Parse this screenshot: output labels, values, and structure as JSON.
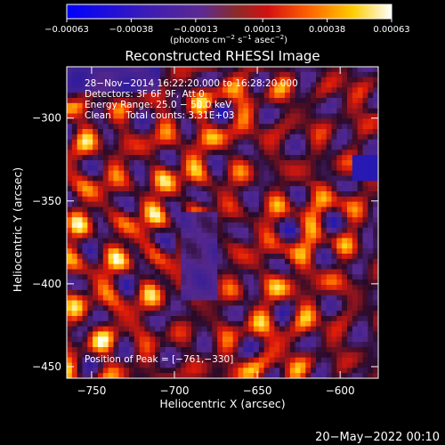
{
  "chart_data": {
    "type": "heatmap",
    "title": "Reconstructed RHESSI Image",
    "xlabel": "Heliocentric X (arcsec)",
    "ylabel": "Heliocentric Y (arcsec)",
    "xlim": [
      -765,
      -577
    ],
    "ylim": [
      -457,
      -269
    ],
    "xticks": [
      -750,
      -700,
      -650,
      -600
    ],
    "yticks": [
      -300,
      -350,
      -400,
      -450
    ],
    "xtick_labels": [
      "−750",
      "−700",
      "−650",
      "−600"
    ],
    "ytick_labels": [
      "−300",
      "−350",
      "−400",
      "−450"
    ],
    "colorbar": {
      "range": [
        -0.00063,
        0.00063
      ],
      "ticks": [
        -0.00063,
        -0.00038,
        -0.00013,
        0.00013,
        0.00038,
        0.00063
      ],
      "tick_labels": [
        "−0.00063",
        "−0.00038",
        "−0.00013",
        "0.00013",
        "0.00038",
        "0.00063"
      ],
      "units_base": "(photons cm",
      "units_exp1": "−2",
      "units_mid": " s",
      "units_exp2": "−1",
      "units_mid2": " asec",
      "units_exp3": "−2",
      "units_end": ")"
    },
    "annotations": {
      "time_range": "28−Nov−2014 16:22:20.000 to 16:28:20.000",
      "detectors": "Detectors: 3F 6F 9F, Att 0",
      "energy": "Energy Range: 25.0 − 50.0 keV",
      "clean": "Clean     Total counts: 3.31E+03",
      "peak": "Position of Peak = [−761,−330]"
    },
    "footer_date": "20−May−2022 00:10",
    "grid": false,
    "colormap": "blue-purple-red-yellow-white"
  }
}
